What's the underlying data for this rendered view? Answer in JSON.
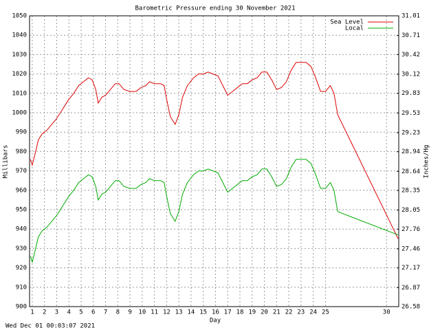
{
  "chart_data": {
    "type": "line",
    "title": "Barometric Pressure ending 30 November 2021",
    "x_label": "Day",
    "y_label": "Millibars",
    "y2_label": "Inches/Hg",
    "footer": "Wed Dec 01 00:03:07 2021",
    "xlim": [
      0.78,
      31.0
    ],
    "xticks": [
      1,
      2,
      3,
      4,
      5,
      6,
      7,
      8,
      9,
      10,
      11,
      12,
      13,
      14,
      15,
      16,
      17,
      18,
      19,
      20,
      21,
      22,
      23,
      24,
      25,
      30
    ],
    "ylim": [
      900,
      1050
    ],
    "yticks": [
      900,
      910,
      920,
      930,
      940,
      950,
      960,
      970,
      980,
      990,
      1000,
      1010,
      1020,
      1030,
      1040,
      1050
    ],
    "y2lim": [
      26.58,
      31.01
    ],
    "y2ticks": [
      26.58,
      26.87,
      27.17,
      27.46,
      27.76,
      28.05,
      28.35,
      28.64,
      28.94,
      29.23,
      29.53,
      29.83,
      30.12,
      30.42,
      30.71,
      31.01
    ],
    "grid": true,
    "legend": "upper right",
    "x": [
      0.85,
      1.0,
      1.2,
      1.5,
      1.8,
      2.2,
      2.6,
      3.0,
      3.5,
      4.0,
      4.4,
      4.8,
      5.2,
      5.6,
      5.9,
      6.2,
      6.4,
      6.7,
      7.0,
      7.4,
      7.8,
      8.1,
      8.5,
      9.0,
      9.5,
      9.9,
      10.3,
      10.6,
      11.0,
      11.5,
      11.8,
      12.0,
      12.3,
      12.7,
      13.0,
      13.3,
      13.7,
      14.2,
      14.6,
      15.0,
      15.4,
      15.8,
      16.2,
      16.6,
      17.0,
      17.4,
      17.8,
      18.2,
      18.6,
      19.0,
      19.4,
      19.8,
      20.2,
      20.6,
      21.0,
      21.4,
      21.8,
      22.2,
      22.6,
      23.0,
      23.4,
      23.8,
      24.2,
      24.6,
      25.0,
      25.4,
      25.7,
      26.0,
      30.95
    ],
    "series": [
      {
        "name": "Sea Level",
        "color": "#dd0000",
        "values": [
          976,
          973,
          978,
          986,
          989,
          991,
          994,
          997,
          1002,
          1007,
          1010,
          1014,
          1016,
          1018,
          1017,
          1012,
          1005,
          1008,
          1009,
          1012,
          1015,
          1015,
          1012,
          1011,
          1011,
          1013,
          1014,
          1016,
          1015,
          1015,
          1014,
          1007,
          998,
          994,
          999,
          1008,
          1014,
          1018,
          1020,
          1020,
          1021,
          1020,
          1019,
          1014,
          1009,
          1011,
          1013,
          1015,
          1015,
          1017,
          1018,
          1021,
          1021,
          1017,
          1012,
          1013,
          1016,
          1022,
          1026,
          1026,
          1026,
          1024,
          1018,
          1011,
          1011,
          1014,
          1010,
          999,
          935
        ]
      },
      {
        "name": "Local",
        "color": "#00aa00",
        "values": [
          926,
          923,
          928,
          936,
          939,
          941,
          944,
          947,
          952,
          957,
          960,
          964,
          966,
          968,
          967,
          962,
          955,
          958,
          959,
          962,
          965,
          965,
          962,
          961,
          961,
          963,
          964,
          966,
          965,
          965,
          964,
          957,
          948,
          944,
          949,
          958,
          964,
          968,
          970,
          970,
          971,
          970,
          969,
          964,
          959,
          961,
          963,
          965,
          965,
          967,
          968,
          971,
          971,
          967,
          962,
          963,
          966,
          972,
          976,
          976,
          976,
          974,
          968,
          961,
          961,
          964,
          960,
          949,
          937
        ]
      }
    ]
  }
}
